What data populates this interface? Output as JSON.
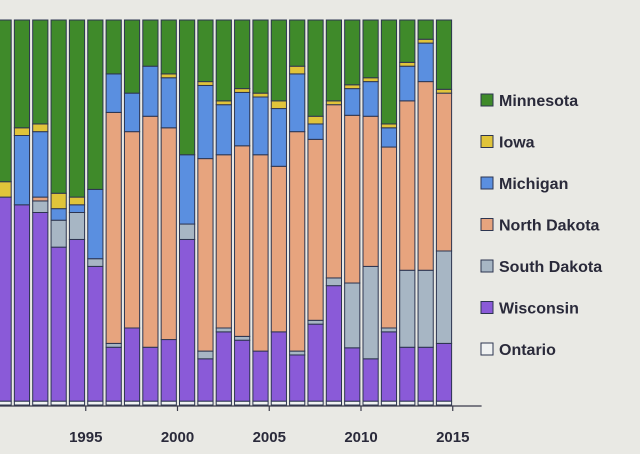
{
  "colors": {
    "Minnesota": "#3f8a2a",
    "Iowa": "#e0c43a",
    "Michigan": "#5a8fe0",
    "North Dakota": "#e7a47e",
    "South Dakota": "#a7b6c4",
    "Wisconsin": "#8a5ad8",
    "Ontario": "#f0f2f2"
  },
  "chart_data": {
    "type": "bar",
    "stacked": true,
    "normalized": true,
    "title": "",
    "xlabel": "",
    "ylabel": "",
    "ylim": [
      0,
      1
    ],
    "grid": false,
    "legend_position": "right",
    "xticks": [
      "1995",
      "2000",
      "2005",
      "2010",
      "2015"
    ],
    "categories": [
      1990,
      1991,
      1992,
      1993,
      1994,
      1995,
      1996,
      1997,
      1998,
      1999,
      2000,
      2001,
      2002,
      2003,
      2004,
      2005,
      2006,
      2007,
      2008,
      2009,
      2010,
      2011,
      2012,
      2013,
      2014
    ],
    "series": [
      {
        "name": "Ontario",
        "values": [
          0.01,
          0.01,
          0.01,
          0.01,
          0.01,
          0.01,
          0.01,
          0.01,
          0.01,
          0.01,
          0.01,
          0.01,
          0.01,
          0.01,
          0.01,
          0.01,
          0.01,
          0.01,
          0.01,
          0.01,
          0.01,
          0.01,
          0.01,
          0.01,
          0.01
        ]
      },
      {
        "name": "Wisconsin",
        "values": [
          0.53,
          0.51,
          0.49,
          0.4,
          0.42,
          0.35,
          0.14,
          0.19,
          0.14,
          0.16,
          0.42,
          0.11,
          0.18,
          0.16,
          0.13,
          0.18,
          0.12,
          0.2,
          0.3,
          0.14,
          0.11,
          0.18,
          0.14,
          0.14,
          0.15
        ]
      },
      {
        "name": "South Dakota",
        "values": [
          0.0,
          0.0,
          0.03,
          0.07,
          0.07,
          0.02,
          0.01,
          0.0,
          0.0,
          0.0,
          0.04,
          0.02,
          0.01,
          0.01,
          0.0,
          0.0,
          0.01,
          0.01,
          0.02,
          0.17,
          0.24,
          0.01,
          0.2,
          0.2,
          0.24
        ]
      },
      {
        "name": "North Dakota",
        "values": [
          0.0,
          0.0,
          0.01,
          0.0,
          0.0,
          0.0,
          0.6,
          0.51,
          0.6,
          0.55,
          0.0,
          0.5,
          0.45,
          0.5,
          0.51,
          0.43,
          0.57,
          0.47,
          0.45,
          0.44,
          0.39,
          0.47,
          0.44,
          0.49,
          0.41
        ]
      },
      {
        "name": "Michigan",
        "values": [
          0.0,
          0.18,
          0.17,
          0.03,
          0.02,
          0.18,
          0.1,
          0.1,
          0.13,
          0.13,
          0.18,
          0.19,
          0.13,
          0.14,
          0.15,
          0.15,
          0.15,
          0.04,
          0.0,
          0.07,
          0.09,
          0.05,
          0.09,
          0.1,
          0.0
        ]
      },
      {
        "name": "Iowa",
        "values": [
          0.04,
          0.02,
          0.02,
          0.04,
          0.02,
          0.0,
          0.0,
          0.0,
          0.0,
          0.01,
          0.0,
          0.01,
          0.01,
          0.01,
          0.01,
          0.02,
          0.02,
          0.02,
          0.01,
          0.01,
          0.01,
          0.01,
          0.01,
          0.01,
          0.01
        ]
      },
      {
        "name": "Minnesota",
        "values": [
          0.42,
          0.28,
          0.27,
          0.45,
          0.46,
          0.44,
          0.14,
          0.19,
          0.12,
          0.14,
          0.35,
          0.16,
          0.21,
          0.18,
          0.19,
          0.21,
          0.12,
          0.25,
          0.21,
          0.17,
          0.15,
          0.27,
          0.11,
          0.05,
          0.18
        ]
      }
    ],
    "legend_order": [
      "Minnesota",
      "Iowa",
      "Michigan",
      "North Dakota",
      "South Dakota",
      "Wisconsin",
      "Ontario"
    ]
  }
}
